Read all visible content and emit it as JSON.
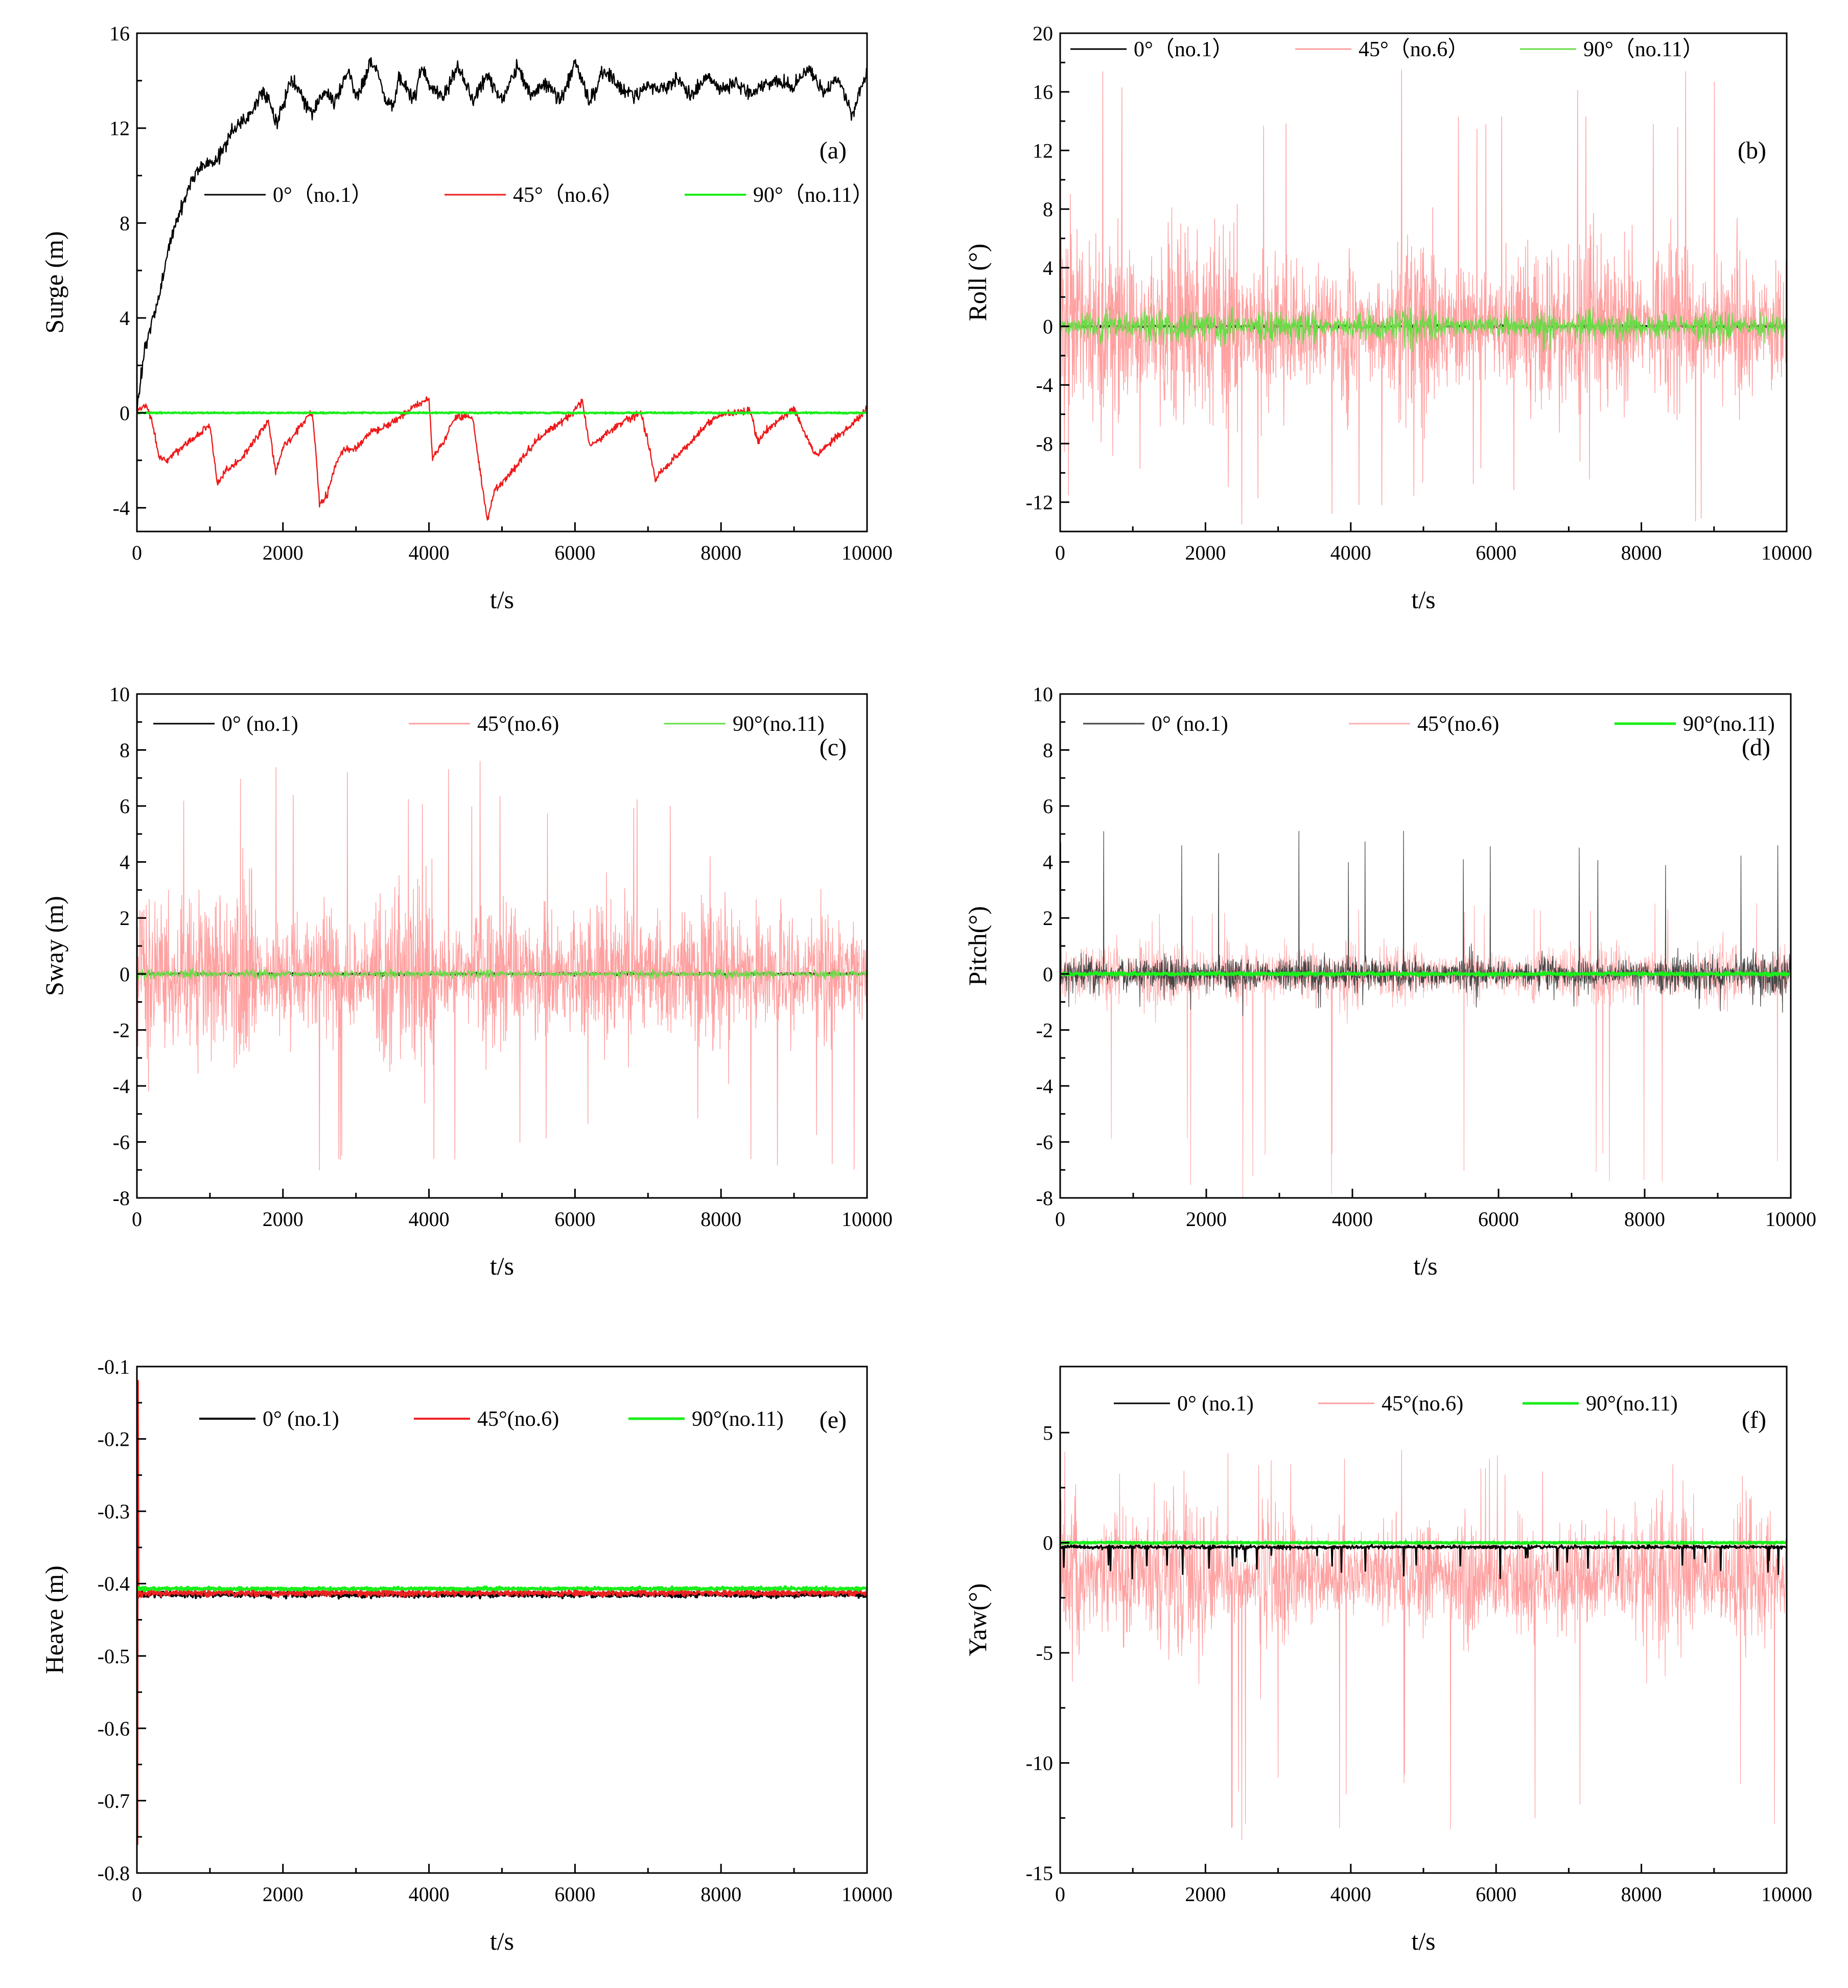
{
  "chart_data": [
    {
      "type": "line",
      "panel_label": "(a)",
      "xlabel": "t/s",
      "ylabel": "Surge (m)",
      "xlim": [
        0,
        10000
      ],
      "ylim": [
        -5,
        16
      ],
      "xticks": [
        0,
        2000,
        4000,
        6000,
        8000,
        10000
      ],
      "xtick_labels": [
        "0",
        "2000",
        "4000",
        "6000",
        "8000",
        "10000"
      ],
      "yticks": [
        -4,
        0,
        4,
        8,
        12,
        16
      ],
      "ytick_labels": [
        "-4",
        "0",
        "4",
        "8",
        "12",
        "16"
      ],
      "legend": {
        "placement": "middle",
        "entries": [
          "0°（no.1）",
          "45°（no.6）",
          "90°（no.11）"
        ]
      },
      "series": [
        {
          "name": "0°（no.1）",
          "color": "#000000",
          "style": "drift",
          "x": [
            0,
            100,
            200,
            300,
            400,
            500,
            600,
            700,
            800,
            900,
            1000,
            1100,
            1200,
            1300,
            1400,
            1500,
            1600,
            1700,
            1800,
            1900,
            2000,
            2100,
            2200,
            2300,
            2400,
            2500,
            2600,
            2700,
            2800,
            2900,
            3000,
            3100,
            3200,
            3300,
            3400,
            3500,
            3600,
            3700,
            3800,
            3900,
            4000,
            4200,
            4400,
            4600,
            4800,
            5000,
            5200,
            5400,
            5600,
            5800,
            6000,
            6200,
            6400,
            6600,
            6800,
            7000,
            7200,
            7400,
            7600,
            7800,
            8000,
            8200,
            8400,
            8600,
            8800,
            9000,
            9200,
            9400,
            9600,
            9800,
            10000
          ],
          "y": [
            0,
            2.5,
            3.8,
            4.8,
            6.5,
            7.8,
            8.5,
            9.4,
            10.1,
            10.4,
            10.5,
            10.6,
            11.2,
            11.8,
            12.2,
            12.3,
            12.8,
            13.5,
            13.3,
            12.2,
            12.9,
            14,
            13.7,
            13.1,
            12.6,
            13.2,
            13.5,
            13.1,
            13.8,
            14.5,
            13.2,
            13.9,
            14.8,
            14.3,
            13.2,
            12.9,
            14.1,
            13.6,
            13.2,
            14.6,
            13.8,
            13.3,
            14.6,
            13.2,
            14.3,
            13.1,
            14.6,
            13.4,
            13.9,
            13.2,
            14.8,
            13.1,
            14.5,
            13.7,
            13.4,
            13.8,
            13.6,
            14.1,
            13.3,
            14.2,
            13.6,
            13.9,
            13.5,
            13.8,
            14,
            13.7,
            14.6,
            13.5,
            14.1,
            12.6,
            14.4
          ],
          "amp": 0.3,
          "seed": 11
        },
        {
          "name": "45°（no.6）",
          "color": "#ee1a1a",
          "style": "drift",
          "x": [
            0,
            100,
            150,
            200,
            300,
            400,
            600,
            800,
            1000,
            1100,
            1200,
            1400,
            1600,
            1700,
            1800,
            1900,
            2000,
            2200,
            2400,
            2450,
            2500,
            2600,
            2700,
            2800,
            3000,
            3200,
            3400,
            3600,
            3800,
            4000,
            4050,
            4100,
            4200,
            4300,
            4400,
            4600,
            4700,
            4800,
            4900,
            5100,
            5300,
            5500,
            5700,
            5900,
            6100,
            6200,
            6300,
            6500,
            6700,
            6900,
            7000,
            7100,
            7200,
            7400,
            7600,
            7800,
            8000,
            8200,
            8400,
            8500,
            8600,
            8700,
            8800,
            9000,
            9200,
            9300,
            9400,
            9600,
            9800,
            10000
          ],
          "y": [
            0,
            0.3,
            0.2,
            -0.3,
            -1.8,
            -2,
            -1.5,
            -1,
            -0.5,
            -3,
            -2.5,
            -2,
            -1.2,
            -0.8,
            -0.3,
            -2.5,
            -1.5,
            -0.7,
            0,
            -1.6,
            -3.8,
            -3.5,
            -2.4,
            -1.6,
            -1.5,
            -0.8,
            -0.6,
            -0.2,
            0.3,
            0.6,
            -2,
            -1.6,
            -1.3,
            -0.5,
            -0.1,
            -0.2,
            -2.5,
            -4.5,
            -3.3,
            -2.6,
            -1.8,
            -1.1,
            -0.6,
            -0.2,
            0.5,
            -1.4,
            -1.2,
            -0.7,
            -0.3,
            0,
            -1.2,
            -2.8,
            -2.4,
            -1.8,
            -1.2,
            -0.5,
            -0.1,
            0,
            0.1,
            -1.2,
            -0.8,
            -0.5,
            -0.3,
            0.2,
            -1.2,
            -1.8,
            -1.5,
            -1,
            -0.5,
            0.2
          ],
          "amp": 0.15,
          "seed": 12
        },
        {
          "name": "90°（no.11）",
          "color": "#1aee1a",
          "style": "flat",
          "base": 0,
          "amp": 0.03,
          "seed": 13,
          "width": 4
        }
      ]
    },
    {
      "type": "line",
      "panel_label": "(b)",
      "xlabel": "t/s",
      "ylabel": "Roll (°)",
      "xlim": [
        0,
        10000
      ],
      "ylim": [
        -14,
        20
      ],
      "xticks": [
        0,
        2000,
        4000,
        6000,
        8000,
        10000
      ],
      "xtick_labels": [
        "0",
        "2000",
        "4000",
        "6000",
        "8000",
        "10000"
      ],
      "yticks": [
        -12,
        -8,
        -4,
        0,
        4,
        8,
        12,
        16,
        20
      ],
      "ytick_labels": [
        "-12",
        "-8",
        "-4",
        "0",
        "4",
        "8",
        "12",
        "16",
        "20"
      ],
      "legend": {
        "placement": "top-left",
        "entries": [
          "0°（no.1）",
          "45°（no.6）",
          "90°（no.11）"
        ]
      },
      "series": [
        {
          "name": "0°（no.1）",
          "color": "#000000",
          "style": "flat",
          "base": 0,
          "amp": 0.1,
          "seed": 21,
          "width": 3
        },
        {
          "name": "45°（no.6）",
          "color": "#ffa0a0",
          "style": "noise",
          "base": 0,
          "amp": 5,
          "peak_max": 17.5,
          "peak_min": -13.5,
          "seed": 22,
          "width": 1.4
        },
        {
          "name": "90°（no.11）",
          "color": "#66dd44",
          "style": "noise",
          "base": 0,
          "amp": 0.9,
          "seed": 23,
          "width": 1.4
        }
      ]
    },
    {
      "type": "line",
      "panel_label": "(c)",
      "xlabel": "t/s",
      "ylabel": "Sway (m)",
      "xlim": [
        0,
        10000
      ],
      "ylim": [
        -8,
        10
      ],
      "xticks": [
        0,
        2000,
        4000,
        6000,
        8000,
        10000
      ],
      "xtick_labels": [
        "0",
        "2000",
        "4000",
        "6000",
        "8000",
        "10000"
      ],
      "yticks": [
        -8,
        -6,
        -4,
        -2,
        0,
        2,
        4,
        6,
        8,
        10
      ],
      "ytick_labels": [
        "-8",
        "-6",
        "-4",
        "-2",
        "0",
        "2",
        "4",
        "6",
        "8",
        "10"
      ],
      "legend": {
        "placement": "top-left",
        "entries": [
          "0° (no.1)",
          "45°(no.6)",
          "90°(no.11)"
        ]
      },
      "series": [
        {
          "name": "0° (no.1)",
          "color": "#000000",
          "style": "flat",
          "base": 0,
          "amp": 0.05,
          "seed": 31,
          "width": 3
        },
        {
          "name": "45°(no.6)",
          "color": "#ffa0a0",
          "style": "noise",
          "base": 0,
          "amp": 2.5,
          "peak_max": 7.6,
          "peak_min": -7,
          "seed": 32,
          "width": 1.4
        },
        {
          "name": "90°(no.11)",
          "color": "#66dd44",
          "style": "noise",
          "base": 0,
          "amp": 0.12,
          "seed": 33,
          "width": 1.4
        }
      ]
    },
    {
      "type": "line",
      "panel_label": "(d)",
      "xlabel": "t/s",
      "ylabel": "Pitch(°)",
      "xlim": [
        0,
        10000
      ],
      "ylim": [
        -8,
        10
      ],
      "xticks": [
        0,
        2000,
        4000,
        6000,
        8000,
        10000
      ],
      "xtick_labels": [
        "0",
        "2000",
        "4000",
        "6000",
        "8000",
        "10000"
      ],
      "yticks": [
        -8,
        -6,
        -4,
        -2,
        0,
        2,
        4,
        6,
        8,
        10
      ],
      "ytick_labels": [
        "-8",
        "-6",
        "-4",
        "-2",
        "0",
        "2",
        "4",
        "6",
        "8",
        "10"
      ],
      "legend": {
        "placement": "top",
        "entries": [
          "0° (no.1)",
          "45°(no.6)",
          "90°(no.11)"
        ]
      },
      "series": [
        {
          "name": "45°(no.6)",
          "color": "#ffb0b0",
          "style": "noise",
          "base": 0,
          "amp": 0.9,
          "peak_max": 2.6,
          "peak_min": -8,
          "seed": 42,
          "width": 1.2
        },
        {
          "name": "0° (no.1)",
          "color": "#444444",
          "style": "noise",
          "base": 0,
          "amp": 0.55,
          "peak_max": 5.1,
          "peak_min": -1.5,
          "seed": 41,
          "width": 1.2
        },
        {
          "name": "90°(no.11)",
          "color": "#1aee1a",
          "style": "flat",
          "base": 0,
          "amp": 0.05,
          "seed": 43,
          "width": 5
        }
      ]
    },
    {
      "type": "line",
      "panel_label": "(e)",
      "xlabel": "t/s",
      "ylabel": "Heave (m)",
      "xlim": [
        0,
        10000
      ],
      "ylim": [
        -0.8,
        -0.1
      ],
      "xticks": [
        0,
        2000,
        4000,
        6000,
        8000,
        10000
      ],
      "xtick_labels": [
        "0",
        "2000",
        "4000",
        "6000",
        "8000",
        "10000"
      ],
      "yticks": [
        -0.8,
        -0.7,
        -0.6,
        -0.5,
        -0.4,
        -0.3,
        -0.2,
        -0.1
      ],
      "ytick_labels": [
        "-0.8",
        "-0.7",
        "-0.6",
        "-0.5",
        "-0.4",
        "-0.3",
        "-0.2",
        "-0.1"
      ],
      "legend": {
        "placement": "top-left",
        "entries": [
          "0° (no.1)",
          "45°(no.6)",
          "90°(no.11)"
        ]
      },
      "series": [
        {
          "name": "0° (no.1)",
          "color": "#000000",
          "style": "flat",
          "base": -0.415,
          "amp": 0.004,
          "seed": 51,
          "width": 4
        },
        {
          "name": "45°(no.6)",
          "color": "#ee2222",
          "style": "flat",
          "base": -0.413,
          "amp": 0.004,
          "seed": 52,
          "width": 4,
          "spike_start": [
            -0.12,
            -0.76
          ]
        },
        {
          "name": "90°(no.11)",
          "color": "#1aee1a",
          "style": "flat",
          "base": -0.407,
          "amp": 0.002,
          "seed": 53,
          "width": 5
        }
      ]
    },
    {
      "type": "line",
      "panel_label": "(f)",
      "xlabel": "t/s",
      "ylabel": "Yaw(°)",
      "xlim": [
        0,
        10000
      ],
      "ylim": [
        -15,
        8
      ],
      "xticks": [
        0,
        2000,
        4000,
        6000,
        8000,
        10000
      ],
      "xtick_labels": [
        "0",
        "2000",
        "4000",
        "6000",
        "8000",
        "10000"
      ],
      "yticks": [
        -15,
        -10,
        -5,
        0,
        5
      ],
      "ytick_labels": [
        "-15",
        "-10",
        "-5",
        "0",
        "5"
      ],
      "legend": {
        "placement": "top-left",
        "entries": [
          "0° (no.1)",
          "45°(no.6)",
          "90°(no.11)"
        ]
      },
      "series": [
        {
          "name": "45°(no.6)",
          "color": "#ffa0a0",
          "style": "noise",
          "base": -1.5,
          "amp": 2.6,
          "peak_max": 4.2,
          "peak_min": -13.5,
          "seed": 62,
          "width": 1.2
        },
        {
          "name": "0° (no.1)",
          "color": "#000000",
          "style": "dips",
          "base": -0.2,
          "amp": 0.08,
          "dip_min": -2,
          "seed": 61,
          "width": 3
        },
        {
          "name": "90°(no.11)",
          "color": "#1aee1a",
          "style": "flat",
          "base": 0,
          "amp": 0.04,
          "seed": 63,
          "width": 5
        }
      ]
    }
  ]
}
